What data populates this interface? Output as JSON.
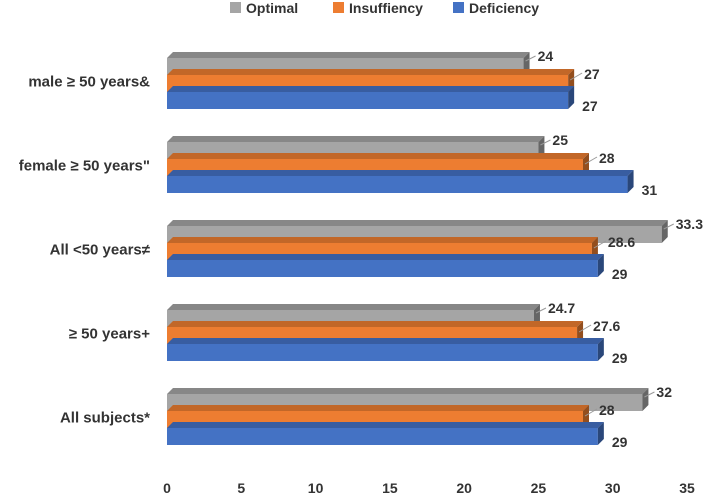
{
  "chart_data": {
    "type": "bar",
    "orientation": "horizontal",
    "style": "3d",
    "title": "",
    "xlabel": "",
    "ylabel": "",
    "xlim": [
      0,
      35
    ],
    "xticks": [
      0,
      5,
      10,
      15,
      20,
      25,
      30,
      35
    ],
    "legend_position": "top",
    "categories": [
      "male ≥ 50 years&",
      "female ≥ 50 years\"",
      "All <50 years≠",
      "≥ 50 years+",
      "All subjects*"
    ],
    "series": [
      {
        "name": "Optimal",
        "color": "#a5a5a5",
        "labels": [
          "24",
          "25",
          "33.3",
          "24.7",
          "32"
        ],
        "values": [
          24,
          25,
          33.3,
          24.7,
          32
        ]
      },
      {
        "name": "Insuffiency",
        "color": "#ed7d31",
        "labels": [
          "27",
          "28",
          "28.6",
          "27.6",
          "28"
        ],
        "values": [
          27,
          28,
          28.6,
          27.6,
          28
        ]
      },
      {
        "name": "Deficiency",
        "color": "#4472c4",
        "labels": [
          "27",
          "31",
          "29",
          "29",
          "29"
        ],
        "values": [
          27,
          31,
          29,
          29,
          29
        ]
      }
    ]
  }
}
